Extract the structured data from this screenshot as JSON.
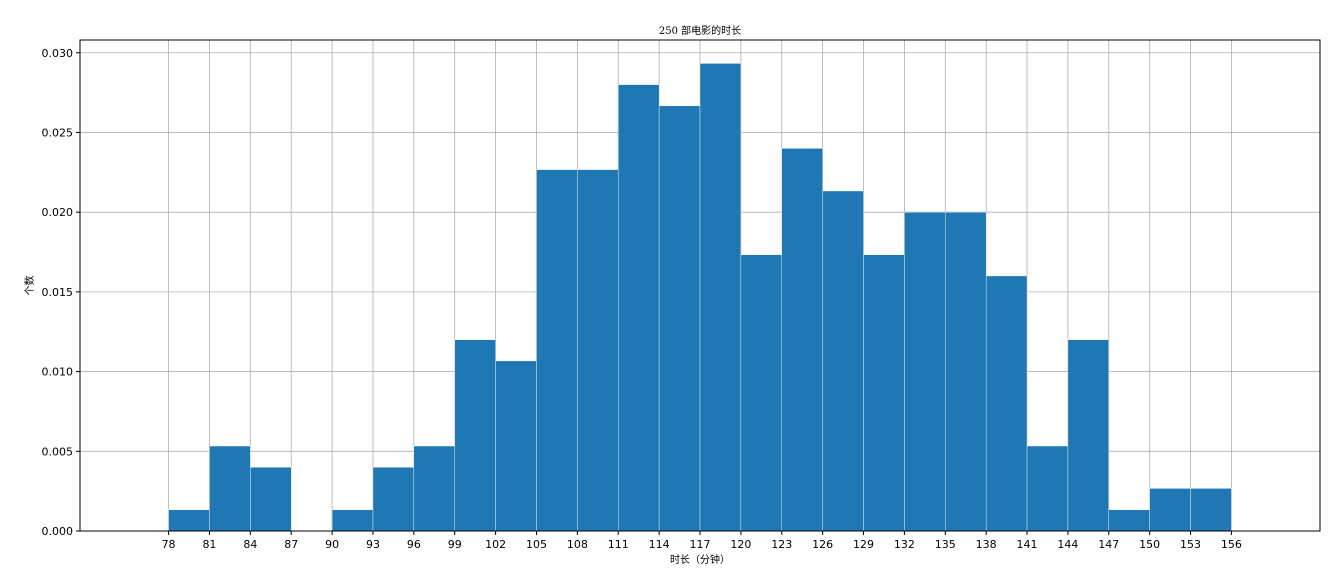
{
  "chart_data": {
    "type": "bar",
    "title": "250 部电影的时长",
    "xlabel": "时长（分钟）",
    "ylabel": "个数",
    "x_range": [
      71.5,
      162.5
    ],
    "ylim": [
      0,
      0.0308
    ],
    "bin_edges": [
      78,
      81,
      84,
      87,
      90,
      93,
      96,
      99,
      102,
      105,
      108,
      111,
      114,
      117,
      120,
      123,
      126,
      129,
      132,
      135,
      138,
      141,
      144,
      147,
      150,
      153,
      156
    ],
    "values": [
      0.00133,
      0.00533,
      0.004,
      0,
      0.00133,
      0.004,
      0.00533,
      0.012,
      0.01067,
      0.02267,
      0.02267,
      0.028,
      0.02667,
      0.02933,
      0.01733,
      0.024,
      0.02133,
      0.01733,
      0.02,
      0.02,
      0.016,
      0.00533,
      0.012,
      0.00133,
      0.00267,
      0.00267
    ],
    "x_ticks": [
      "78",
      "81",
      "84",
      "87",
      "90",
      "93",
      "96",
      "99",
      "102",
      "105",
      "108",
      "111",
      "114",
      "117",
      "120",
      "123",
      "126",
      "129",
      "132",
      "135",
      "138",
      "141",
      "144",
      "147",
      "150",
      "153",
      "156"
    ],
    "y_ticks": [
      "0.000",
      "0.005",
      "0.010",
      "0.015",
      "0.020",
      "0.025",
      "0.030"
    ],
    "grid": true,
    "bar_color": "#1f77b4",
    "grid_color": "#b0b0b0"
  }
}
